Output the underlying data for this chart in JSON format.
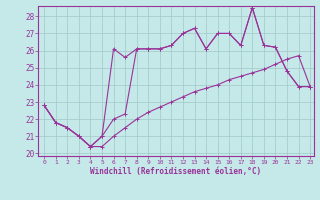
{
  "background_color": "#c5e8e8",
  "grid_color": "#a0c8c8",
  "line_color": "#993399",
  "xlabel": "Windchill (Refroidissement éolien,°C)",
  "xlim_min": -0.5,
  "xlim_max": 23.3,
  "ylim_min": 19.85,
  "ylim_max": 28.6,
  "xticks": [
    0,
    1,
    2,
    3,
    4,
    5,
    6,
    7,
    8,
    9,
    10,
    11,
    12,
    13,
    14,
    15,
    16,
    17,
    18,
    19,
    20,
    21,
    22,
    23
  ],
  "yticks": [
    20,
    21,
    22,
    23,
    24,
    25,
    26,
    27,
    28
  ],
  "line1": {
    "x": [
      0,
      1,
      2,
      3,
      4,
      5,
      6,
      7,
      8,
      9,
      10,
      11,
      12,
      13,
      14,
      15,
      16,
      17,
      18,
      19,
      20,
      21,
      22,
      23
    ],
    "y": [
      22.8,
      21.8,
      21.5,
      21.0,
      20.4,
      20.4,
      21.0,
      21.5,
      22.0,
      22.4,
      22.7,
      23.0,
      23.3,
      23.6,
      23.8,
      24.0,
      24.3,
      24.5,
      24.7,
      24.9,
      25.2,
      25.5,
      25.7,
      23.9
    ]
  },
  "line2": {
    "x": [
      0,
      1,
      2,
      3,
      4,
      5,
      6,
      7,
      8,
      9,
      10,
      11,
      12,
      13,
      14,
      15,
      16,
      17,
      18,
      19,
      20,
      21,
      22,
      23
    ],
    "y": [
      22.8,
      21.8,
      21.5,
      21.0,
      20.4,
      21.0,
      26.1,
      25.6,
      26.1,
      26.1,
      26.1,
      26.3,
      27.0,
      27.3,
      26.1,
      27.0,
      27.0,
      26.3,
      28.5,
      26.3,
      26.2,
      24.8,
      23.9,
      23.9
    ]
  },
  "line3": {
    "x": [
      0,
      1,
      2,
      3,
      4,
      5,
      6,
      7,
      8,
      9,
      10,
      11,
      12,
      13,
      14,
      15,
      16,
      17,
      18,
      19,
      20,
      21,
      22,
      23
    ],
    "y": [
      22.8,
      21.8,
      21.5,
      21.0,
      20.4,
      21.0,
      22.0,
      22.3,
      26.1,
      26.1,
      26.1,
      26.3,
      27.0,
      27.3,
      26.1,
      27.0,
      27.0,
      26.3,
      28.5,
      26.3,
      26.2,
      24.8,
      23.9,
      23.9
    ]
  }
}
